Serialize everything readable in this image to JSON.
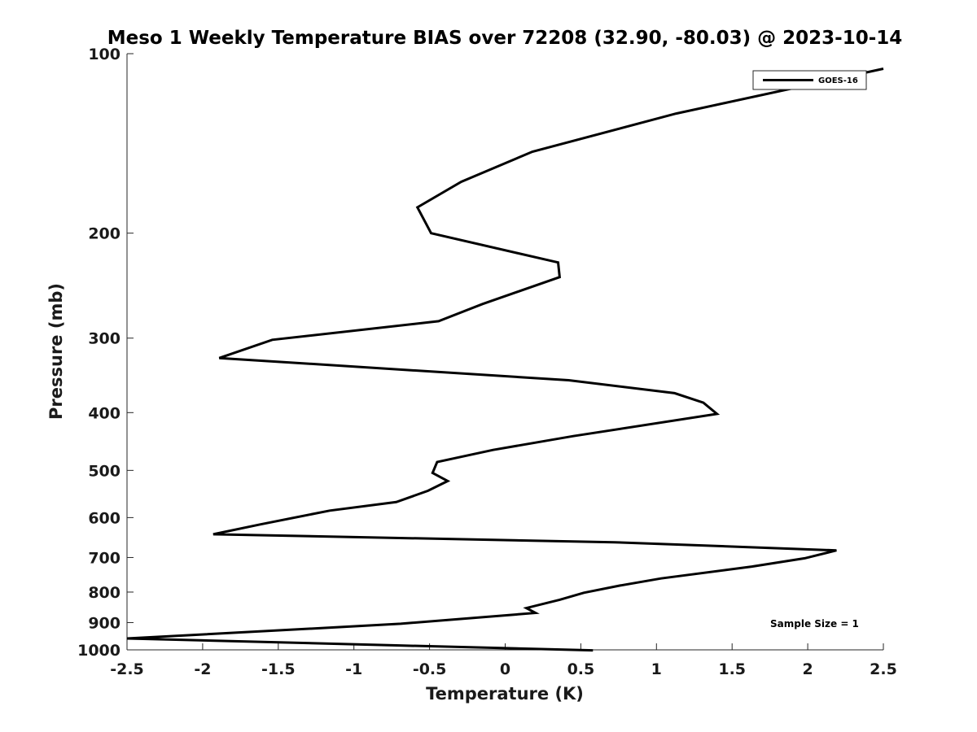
{
  "chart_data": {
    "type": "line",
    "title": "Meso 1 Weekly Temperature BIAS over 72208 (32.90, -80.03) @ 2023-10-14",
    "xlabel": "Temperature (K)",
    "ylabel": "Pressure (mb)",
    "xlim": [
      -2.5,
      2.5
    ],
    "ylim": [
      100,
      1000
    ],
    "y_scale": "log",
    "y_reversed": true,
    "grid": false,
    "legend_position": "top-right",
    "x_ticks": [
      -2.5,
      -2,
      -1.5,
      -1,
      -0.5,
      0,
      0.5,
      1,
      1.5,
      2,
      2.5
    ],
    "x_tick_labels": [
      "-2.5",
      "-2",
      "-1.5",
      "-1",
      "-0.5",
      "0",
      "0.5",
      "1",
      "1.5",
      "2",
      "2.5"
    ],
    "y_ticks": [
      100,
      200,
      300,
      400,
      500,
      600,
      700,
      800,
      900,
      1000
    ],
    "y_tick_labels": [
      "100",
      "200",
      "300",
      "400",
      "500",
      "600",
      "700",
      "800",
      "900",
      "1000"
    ],
    "annotation": "Sample Size = 1",
    "series": [
      {
        "name": "GOES-16",
        "color": "#000000",
        "x": [
          2.5,
          1.13,
          0.18,
          -0.29,
          -0.58,
          -0.49,
          0.35,
          0.36,
          -0.15,
          -0.44,
          -1.54,
          -1.89,
          0.42,
          1.12,
          1.31,
          1.4,
          0.45,
          -0.08,
          -0.45,
          -0.48,
          -0.38,
          -0.51,
          -0.72,
          -1.16,
          -1.62,
          -1.93,
          0.72,
          2.19,
          1.98,
          1.63,
          1.03,
          0.76,
          0.52,
          0.36,
          0.14,
          0.2,
          -0.69,
          -1.24,
          -2.5,
          -0.72,
          0.58
        ],
        "y": [
          106,
          126,
          146,
          164,
          181,
          200,
          224,
          237,
          263,
          281,
          302,
          324,
          353,
          371,
          385,
          402,
          438,
          462,
          484,
          505,
          521,
          541,
          565,
          584,
          616,
          640,
          660,
          681,
          702,
          725,
          759,
          780,
          802,
          824,
          851,
          867,
          904,
          920,
          957,
          983,
          1002
        ]
      }
    ]
  }
}
